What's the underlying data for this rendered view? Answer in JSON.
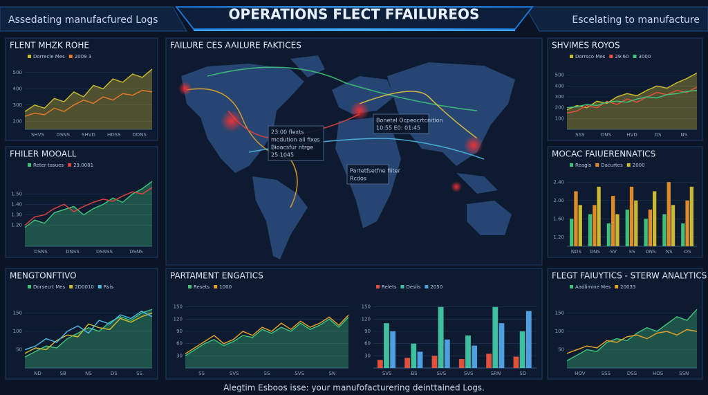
{
  "header": {
    "left": "Assedating manufacfured Logs",
    "title": "OPERATIONS FLECT FFAILUREOS",
    "right": "Escelating to manufacture"
  },
  "map": {
    "title": "FAILURE CES AAILURE FAKTICES",
    "tooltips": [
      {
        "lines": [
          "23:00 flexts",
          "mcdution ali fixes",
          "Bioacsfur ntrge",
          "25 1045"
        ]
      },
      {
        "lines": [
          "Bonetel Ocpeocrtcnition",
          "10:55 E0: 01:45"
        ]
      },
      {
        "lines": [
          "Partetfsetfne fiiter",
          "Rcdos"
        ]
      }
    ]
  },
  "panels": [
    {
      "title": "FLENT MHZK ROHE",
      "charts": [
        {
          "type": "line",
          "ylim": [
            150,
            550
          ],
          "yticks": [
            200,
            300,
            400,
            500
          ],
          "xlabels": [
            "SHVS",
            "DSNS",
            "SHVD",
            "HDSS",
            "DDNS"
          ],
          "series": [
            {
              "name": "Dorrecle Mes",
              "color": "#c9b832",
              "style": "area",
              "values": [
                260,
                300,
                280,
                340,
                320,
                380,
                350,
                420,
                400,
                460,
                440,
                490,
                470,
                520
              ]
            },
            {
              "name": "2009 3",
              "color": "#e07a2a",
              "style": "line",
              "values": [
                230,
                250,
                240,
                280,
                260,
                300,
                330,
                310,
                350,
                330,
                370,
                360,
                390,
                380
              ]
            }
          ]
        }
      ]
    },
    {
      "title": "FHILER MOOALL",
      "charts": [
        {
          "type": "line",
          "ylim": [
            1.0,
            1.7
          ],
          "yticks": [
            {
              "value": 1.2,
              "label": "1.20"
            },
            {
              "value": 1.3,
              "label": "1.30"
            },
            {
              "value": 1.4,
              "label": "1.40"
            },
            {
              "value": 1.5,
              "label": "1.50"
            }
          ],
          "xlabels": [
            "DSNS",
            "DNSS",
            "DSNSS",
            "DSNS"
          ],
          "series": [
            {
              "name": "Reter tasues",
              "color": "#3fbf7a",
              "style": "area",
              "values": [
                1.18,
                1.25,
                1.22,
                1.32,
                1.35,
                1.38,
                1.3,
                1.36,
                1.4,
                1.46,
                1.42,
                1.5,
                1.55,
                1.62
              ]
            },
            {
              "name": "29.0081",
              "color": "#d9443a",
              "style": "line",
              "values": [
                1.2,
                1.28,
                1.3,
                1.36,
                1.4,
                1.33,
                1.38,
                1.42,
                1.45,
                1.43,
                1.48,
                1.52,
                1.5,
                1.56
              ]
            }
          ]
        }
      ]
    },
    {
      "title": "SHVIMES ROYOS",
      "charts": [
        {
          "type": "line",
          "ylim": [
            0,
            600
          ],
          "yticks": [
            100,
            200,
            300,
            400,
            500
          ],
          "xlabels": [
            "SSS",
            "DNS",
            "HVD",
            "DS",
            "NS"
          ],
          "series": [
            {
              "name": "Dorrsco Mes",
              "color": "#c9b832",
              "style": "area",
              "values": [
                180,
                220,
                200,
                260,
                240,
                300,
                330,
                310,
                360,
                400,
                380,
                430,
                470,
                520
              ]
            },
            {
              "name": "29:60",
              "color": "#e0503a",
              "style": "line",
              "values": [
                150,
                170,
                220,
                200,
                260,
                230,
                280,
                250,
                300,
                340,
                320,
                360,
                340,
                390
              ]
            },
            {
              "name": "3000",
              "color": "#3fbf7a",
              "style": "line",
              "values": [
                200,
                210,
                230,
                220,
                250,
                260,
                250,
                280,
                300,
                290,
                320,
                330,
                350,
                360
              ]
            }
          ]
        }
      ]
    },
    {
      "title": "MOCAC FAIUERENNATICS",
      "charts": [
        {
          "type": "bar",
          "ylim": [
            1.0,
            2.6
          ],
          "yticks": [
            {
              "value": 1.2,
              "label": "1.20"
            },
            {
              "value": 1.6,
              "label": "1.60"
            },
            {
              "value": 2.0,
              "label": "2.00"
            },
            {
              "value": 2.4,
              "label": "2.40"
            }
          ],
          "categories": [
            "NDS",
            "DNS",
            "SV",
            "SS",
            "DNS",
            "NS",
            "DS"
          ],
          "series": [
            {
              "name": "Reagls",
              "color": "#3fbf7a",
              "values": [
                1.6,
                1.7,
                1.5,
                1.8,
                1.6,
                1.7,
                1.5
              ]
            },
            {
              "name": "Dacurtes",
              "color": "#e08a2a",
              "values": [
                2.2,
                1.9,
                2.1,
                2.3,
                1.8,
                2.4,
                2.0
              ]
            },
            {
              "name": "2000",
              "color": "#c9b832",
              "values": [
                1.9,
                2.3,
                1.7,
                2.0,
                2.2,
                1.9,
                2.3
              ]
            }
          ]
        }
      ]
    },
    {
      "title": "MENGTONFTIVO",
      "charts": [
        {
          "type": "line",
          "ylim": [
            0,
            200
          ],
          "yticks": [
            50,
            100,
            150
          ],
          "xlabels": [
            "ND",
            "SB",
            "NS",
            "DS",
            "SS"
          ],
          "series": [
            {
              "name": "Dorsecrt Mes",
              "color": "#3fbf7a",
              "style": "area",
              "values": [
                30,
                45,
                60,
                55,
                80,
                95,
                110,
                100,
                125,
                140,
                130,
                150,
                160
              ]
            },
            {
              "name": "2D0010",
              "color": "#c9b832",
              "style": "line",
              "values": [
                40,
                55,
                50,
                75,
                90,
                85,
                120,
                110,
                105,
                135,
                125,
                140,
                150
              ]
            },
            {
              "name": "Rsis",
              "color": "#4fb6e0",
              "style": "line",
              "values": [
                50,
                60,
                80,
                70,
                100,
                115,
                95,
                130,
                120,
                145,
                135,
                155,
                140
              ]
            }
          ]
        }
      ]
    },
    {
      "title": "PARTAMENT ENGATICS",
      "charts": [
        {
          "type": "line",
          "ylim": [
            0,
            180
          ],
          "yticks": [
            30,
            60,
            90,
            120,
            150
          ],
          "xlabels": [
            "SS",
            "SVS",
            "SS",
            "SVS",
            "SN"
          ],
          "series": [
            {
              "name": "Resets",
              "color": "#3fbf7a",
              "style": "area",
              "values": [
                30,
                45,
                60,
                70,
                55,
                65,
                80,
                75,
                95,
                85,
                100,
                90,
                110,
                95,
                105,
                120,
                100,
                125
              ]
            },
            {
              "name": "1000",
              "color": "#e0a02a",
              "style": "line",
              "values": [
                35,
                50,
                65,
                80,
                60,
                70,
                90,
                80,
                100,
                90,
                110,
                95,
                115,
                100,
                110,
                125,
                105,
                130
              ]
            }
          ]
        },
        {
          "type": "bar",
          "ylim": [
            0,
            180
          ],
          "yticks": [
            30,
            60,
            90,
            120,
            150
          ],
          "categories": [
            "SVS",
            "BS",
            "SVS",
            "SVS",
            "SRN",
            "SD"
          ],
          "series": [
            {
              "name": "Relets",
              "color": "#e0503a",
              "values": [
                20,
                25,
                30,
                22,
                35,
                28
              ]
            },
            {
              "name": "Deslis",
              "color": "#3fbfa0",
              "values": [
                110,
                60,
                150,
                80,
                150,
                90
              ]
            },
            {
              "name": "2050",
              "color": "#4f9fe0",
              "values": [
                90,
                40,
                70,
                55,
                110,
                140
              ]
            }
          ]
        }
      ]
    },
    {
      "title": "FLEGT FAIUYTICS - STERW ANALYTICS",
      "charts": [
        {
          "type": "line",
          "ylim": [
            0,
            200
          ],
          "yticks": [
            50,
            100,
            150
          ],
          "xlabels": [
            "HOV",
            "SSS",
            "DSS",
            "HOS",
            "SSN"
          ],
          "series": [
            {
              "name": "Aadlimine Mes",
              "color": "#3fbf7a",
              "style": "area",
              "values": [
                20,
                35,
                50,
                45,
                70,
                80,
                75,
                95,
                110,
                100,
                120,
                140,
                130,
                160
              ]
            },
            {
              "name": "20033",
              "color": "#e0a02a",
              "style": "line",
              "values": [
                40,
                50,
                60,
                55,
                75,
                70,
                85,
                90,
                80,
                95,
                100,
                90,
                105,
                100
              ]
            }
          ]
        }
      ]
    }
  ],
  "footer": "Alegtim Esboos isse: your manufofacturering deinttained Logs."
}
